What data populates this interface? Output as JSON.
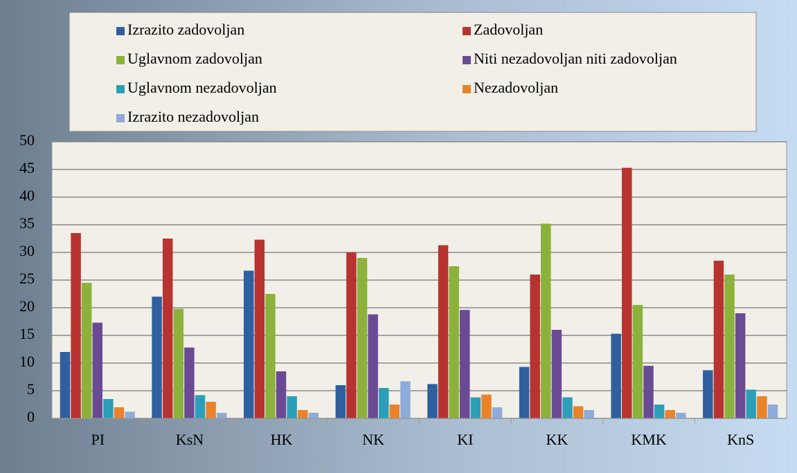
{
  "chart_data": {
    "type": "bar",
    "categories": [
      "PI",
      "KsN",
      "HK",
      "NK",
      "KI",
      "KK",
      "KMK",
      "KnS"
    ],
    "series": [
      {
        "name": "Izrazito zadovoljan",
        "color": "#2f5f9e",
        "values": [
          12,
          22,
          26.7,
          6,
          6.2,
          9.3,
          15.3,
          8.7
        ]
      },
      {
        "name": "Zadovoljan",
        "color": "#b83330",
        "values": [
          33.5,
          32.5,
          32.3,
          30,
          31.3,
          26,
          45.3,
          28.5
        ]
      },
      {
        "name": "Uglavnom zadovoljan",
        "color": "#8cb23c",
        "values": [
          24.5,
          19.8,
          22.5,
          29,
          27.5,
          35.2,
          20.5,
          26
        ]
      },
      {
        "name": "Niti nezadovoljan niti zadovoljan",
        "color": "#6b4a94",
        "values": [
          17.3,
          12.8,
          8.5,
          18.8,
          19.6,
          16,
          9.5,
          19
        ]
      },
      {
        "name": "Uglavnom nezadovoljan",
        "color": "#2b9fb8",
        "values": [
          3.5,
          4.2,
          4,
          5.5,
          3.8,
          3.8,
          2.5,
          5.2
        ]
      },
      {
        "name": "Nezadovoljan",
        "color": "#e8832c",
        "values": [
          2,
          3,
          1.5,
          2.5,
          4.3,
          2.2,
          1.5,
          4
        ]
      },
      {
        "name": "Izrazito nezadovoljan",
        "color": "#8fabd9",
        "values": [
          1.2,
          1,
          1,
          6.7,
          2,
          1.5,
          1,
          2.5
        ]
      }
    ],
    "ylim": [
      0,
      50
    ],
    "yticks": [
      0,
      5,
      10,
      15,
      20,
      25,
      30,
      35,
      40,
      45,
      50
    ],
    "grid": true,
    "legend": "top"
  }
}
